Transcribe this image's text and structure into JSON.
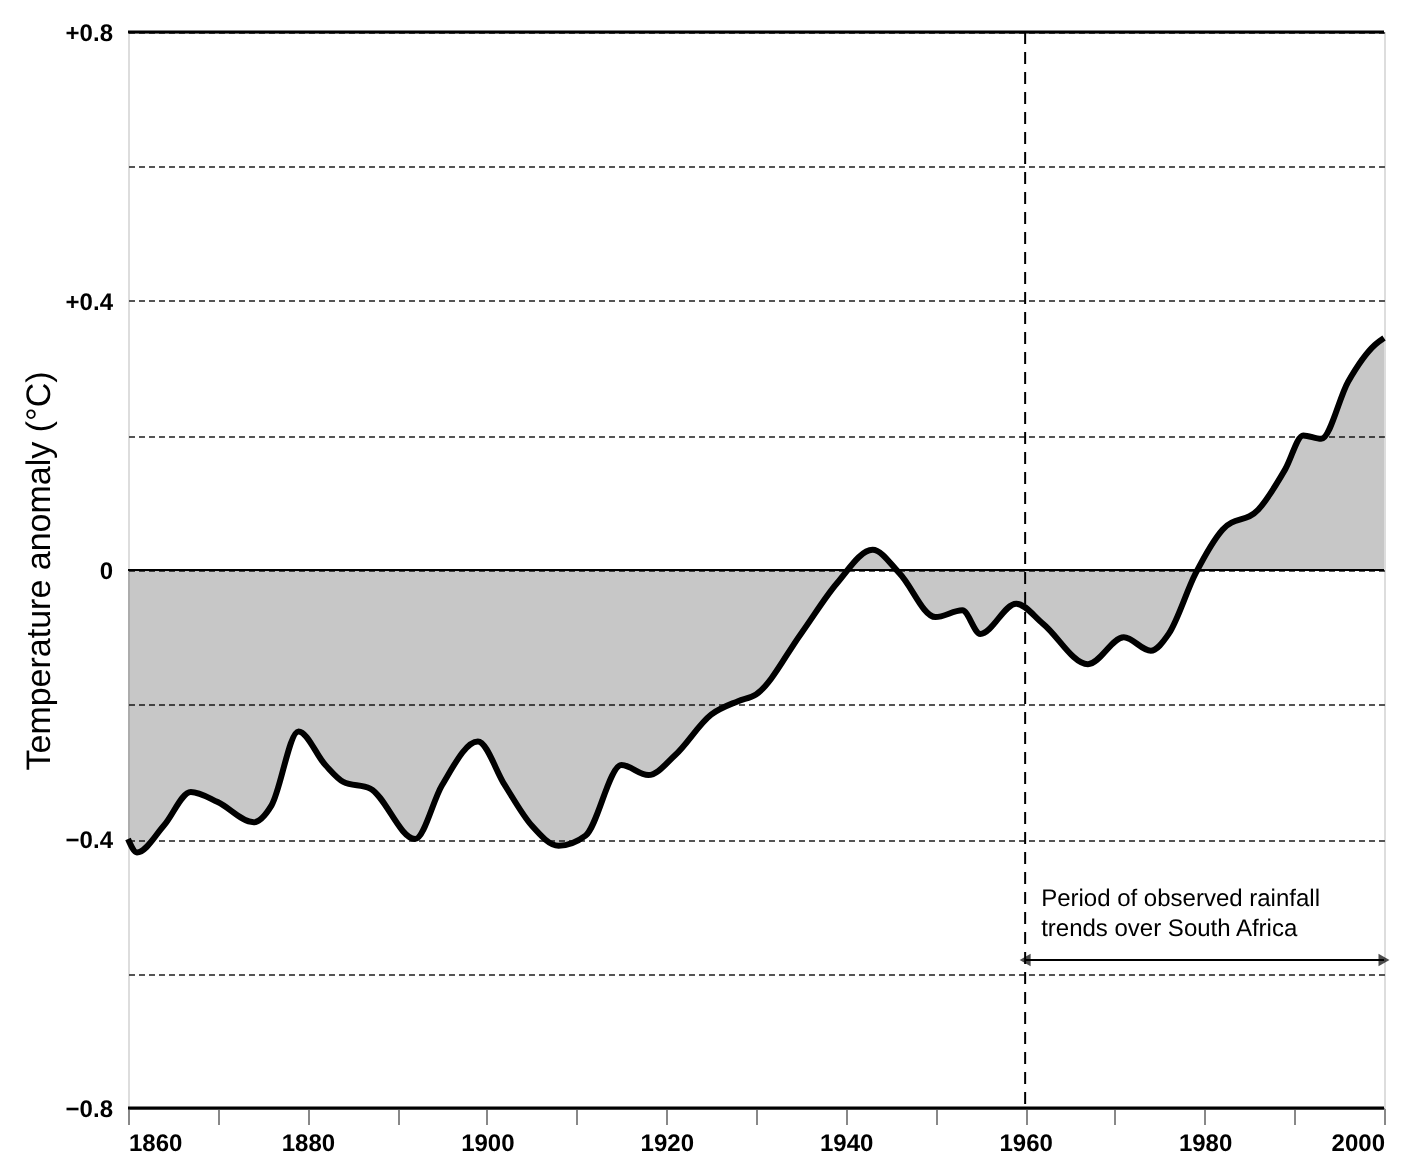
{
  "chart_data": {
    "type": "area",
    "ylabel": "Temperature anomaly (°C)",
    "x": [
      1860,
      1861,
      1864,
      1867,
      1870,
      1874,
      1876,
      1879,
      1882,
      1884,
      1887,
      1892,
      1895,
      1899,
      1902,
      1905,
      1908,
      1911,
      1915,
      1918,
      1921,
      1925,
      1928,
      1930,
      1935,
      1939,
      1943,
      1946,
      1950,
      1953,
      1955,
      1959,
      1962,
      1967,
      1971,
      1974,
      1976,
      1979,
      1982,
      1986,
      1989,
      1991,
      1993,
      1996,
      1999,
      2000
    ],
    "series": [
      {
        "color": "#000000",
        "values": [
          -0.4,
          -0.42,
          -0.38,
          -0.33,
          -0.345,
          -0.375,
          -0.35,
          -0.24,
          -0.29,
          -0.315,
          -0.325,
          -0.4,
          -0.32,
          -0.255,
          -0.32,
          -0.38,
          -0.41,
          -0.395,
          -0.29,
          -0.305,
          -0.275,
          -0.215,
          -0.195,
          -0.185,
          -0.095,
          -0.02,
          0.03,
          -0.005,
          -0.07,
          -0.06,
          -0.095,
          -0.05,
          -0.08,
          -0.14,
          -0.1,
          -0.12,
          -0.095,
          -0.005,
          0.06,
          0.09,
          0.15,
          0.2,
          0.195,
          0.28,
          0.335,
          0.345
        ]
      }
    ],
    "xlim": [
      1860,
      2000
    ],
    "xticks": [
      1860,
      {
        "value": 1870,
        "label": null
      },
      1880,
      {
        "value": 1890,
        "label": null
      },
      1900,
      {
        "value": 1910,
        "label": null
      },
      1920,
      {
        "value": 1930,
        "label": null
      },
      1940,
      {
        "value": 1950,
        "label": null
      },
      1960,
      {
        "value": 1970,
        "label": null
      },
      1980,
      {
        "value": 1990,
        "label": null
      },
      2000
    ],
    "ylim": [
      -0.8,
      0.8
    ],
    "yticks": [
      {
        "value": -0.8,
        "label": "−0.8"
      },
      {
        "value": -0.6,
        "label": null
      },
      {
        "value": -0.4,
        "label": "−0.4"
      },
      {
        "value": -0.2,
        "label": null
      },
      {
        "value": 0,
        "label": "0"
      },
      {
        "value": 0.2,
        "label": null
      },
      {
        "value": 0.4,
        "label": "+0.4"
      },
      {
        "value": 0.6,
        "label": null
      },
      {
        "value": 0.8,
        "label": "+0.8"
      }
    ],
    "grid": "y",
    "ref_lines": [
      {
        "axis": "x",
        "value": 1960,
        "line_style": "dashed",
        "color": "#000000"
      }
    ],
    "annotations": [
      {
        "text": "Period of observed rainfall trends over South Africa",
        "x": 1960,
        "y": -0.58
      }
    ]
  }
}
